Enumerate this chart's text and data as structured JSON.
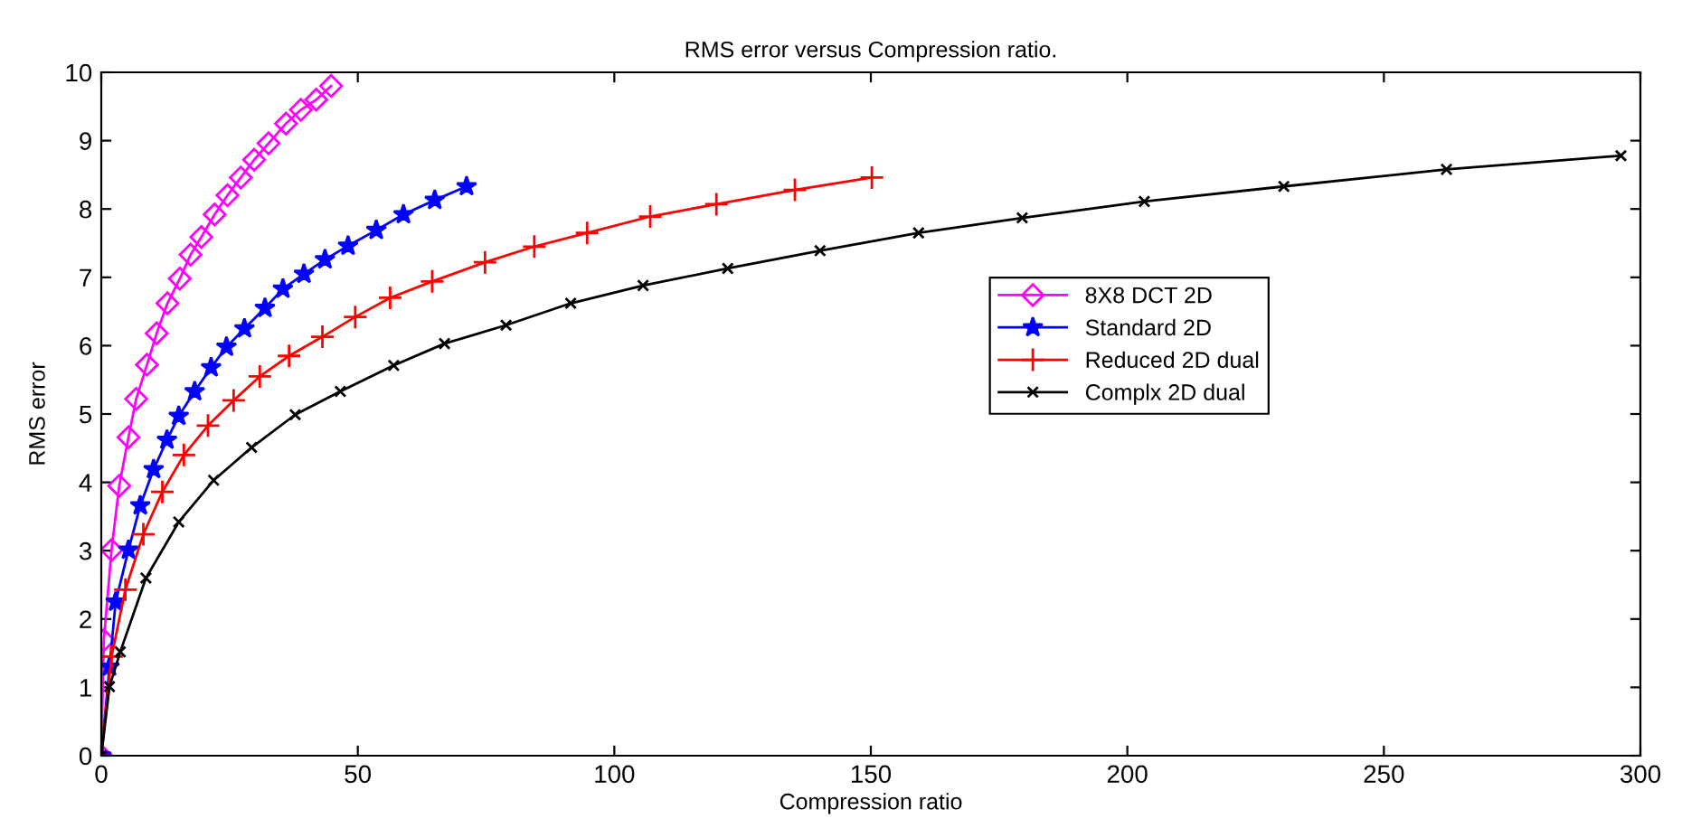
{
  "chart_data": {
    "type": "line",
    "title": "RMS error versus Compression ratio.",
    "xlabel": "Compression ratio",
    "ylabel": "RMS error",
    "xlim": [
      0,
      300
    ],
    "ylim": [
      0,
      10
    ],
    "xticks": [
      0,
      50,
      100,
      150,
      200,
      250,
      300
    ],
    "yticks": [
      0,
      1,
      2,
      3,
      4,
      5,
      6,
      7,
      8,
      9,
      10
    ],
    "grid": false,
    "legend": "right",
    "line_style": "solid",
    "series": [
      {
        "name": "8X8 DCT 2D",
        "color": "#ff00ff",
        "marker": "diamond",
        "x": [
          0,
          0.5,
          2.0,
          3.5,
          5.3,
          6.8,
          8.9,
          10.8,
          12.9,
          15.3,
          17.4,
          19.5,
          22.1,
          24.6,
          27.2,
          29.8,
          32.6,
          36.0,
          38.9,
          41.9,
          44.8
        ],
        "values": [
          0,
          1.69,
          3.01,
          3.95,
          4.66,
          5.22,
          5.72,
          6.18,
          6.62,
          6.98,
          7.33,
          7.59,
          7.92,
          8.2,
          8.46,
          8.72,
          8.96,
          9.25,
          9.45,
          9.6,
          9.8
        ]
      },
      {
        "name": "Standard 2D",
        "color": "#0000ff",
        "marker": "star",
        "x": [
          0,
          1.6,
          2.8,
          5.3,
          7.6,
          10.2,
          12.8,
          15.1,
          18.2,
          21.4,
          24.4,
          27.9,
          31.9,
          35.4,
          39.5,
          43.6,
          48.1,
          53.6,
          58.9,
          65.0,
          71.2
        ],
        "values": [
          0,
          1.3,
          2.25,
          3.01,
          3.66,
          4.19,
          4.62,
          4.97,
          5.33,
          5.68,
          5.98,
          6.25,
          6.55,
          6.83,
          7.05,
          7.26,
          7.46,
          7.69,
          7.92,
          8.13,
          8.33
        ]
      },
      {
        "name": "Reduced 2D dual",
        "color": "#ff0000",
        "marker": "cross",
        "x": [
          0,
          2.0,
          4.7,
          8.2,
          11.9,
          16.1,
          20.8,
          25.8,
          30.9,
          36.6,
          43.1,
          49.5,
          56.3,
          64.5,
          74.8,
          84.4,
          94.7,
          107.0,
          119.9,
          135.2,
          150.2
        ],
        "values": [
          0,
          1.45,
          2.43,
          3.24,
          3.86,
          4.4,
          4.83,
          5.2,
          5.55,
          5.85,
          6.13,
          6.42,
          6.7,
          6.94,
          7.22,
          7.45,
          7.65,
          7.89,
          8.07,
          8.28,
          8.46
        ]
      },
      {
        "name": "Complx 2D dual",
        "color": "#000000",
        "marker": "x",
        "x": [
          0,
          1.6,
          3.7,
          8.7,
          15.1,
          21.9,
          29.3,
          37.8,
          46.6,
          57.0,
          66.9,
          78.9,
          91.5,
          105.6,
          122.1,
          140.1,
          159.3,
          179.5,
          203.3,
          230.5,
          262.2,
          296.2
        ],
        "values": [
          0,
          1.01,
          1.52,
          2.6,
          3.42,
          4.03,
          4.51,
          4.99,
          5.33,
          5.71,
          6.03,
          6.3,
          6.62,
          6.88,
          7.13,
          7.39,
          7.65,
          7.87,
          8.11,
          8.33,
          8.58,
          8.78
        ]
      }
    ]
  }
}
